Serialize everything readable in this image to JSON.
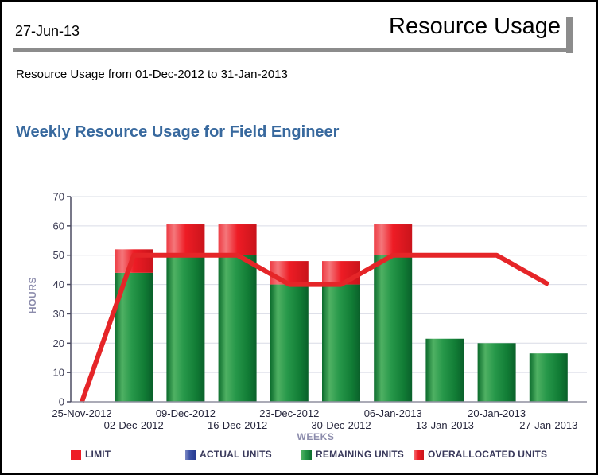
{
  "page": {
    "date": "27-Jun-13",
    "title": "Resource Usage",
    "subtitle": "Resource Usage from 01-Dec-2012 to 31-Jan-2013"
  },
  "chart": {
    "title": "Weekly Resource Usage for Field Engineer"
  },
  "colors": {
    "title_blue": "#38699e",
    "limit_red": "#ee1c25",
    "remaining_green": "#1d8c3f",
    "actual_blue": "#3b50a5",
    "header_rule_gray": "#8c8c8c"
  },
  "chart_data": {
    "type": "bar",
    "stacked": true,
    "title": "Weekly Resource Usage for Field Engineer",
    "categories": [
      "25-Nov-2012",
      "02-Dec-2012",
      "09-Dec-2012",
      "16-Dec-2012",
      "23-Dec-2012",
      "30-Dec-2012",
      "06-Jan-2013",
      "13-Jan-2013",
      "20-Jan-2013",
      "27-Jan-2013"
    ],
    "series": [
      {
        "name": "ACTUAL UNITS",
        "type": "bar",
        "color": "#3b50a5",
        "values": [
          0,
          0,
          0,
          0,
          0,
          0,
          0,
          0,
          0,
          0
        ]
      },
      {
        "name": "REMAINING UNITS",
        "type": "bar",
        "color": "#1d8c3f",
        "values": [
          0,
          44,
          49.5,
          50,
          40,
          40,
          50,
          21.5,
          20,
          16.5
        ]
      },
      {
        "name": "OVERALLOCATED UNITS",
        "type": "bar",
        "color": "#ee1c25",
        "values": [
          0,
          8,
          11,
          10.5,
          8,
          8,
          10.5,
          0,
          0,
          0
        ]
      },
      {
        "name": "LIMIT",
        "type": "line",
        "color": "#e52528",
        "values": [
          0,
          50,
          50,
          50,
          40,
          40,
          50,
          50,
          50,
          40
        ]
      }
    ],
    "xlabel": "WEEKS",
    "ylabel": "HOURS",
    "ylim": [
      0,
      70
    ],
    "ytick_step": 10,
    "grid": true,
    "legend_position": "bottom",
    "legend": [
      "LIMIT",
      "ACTUAL UNITS",
      "REMAINING UNITS",
      "OVERALLOCATED UNITS"
    ]
  }
}
